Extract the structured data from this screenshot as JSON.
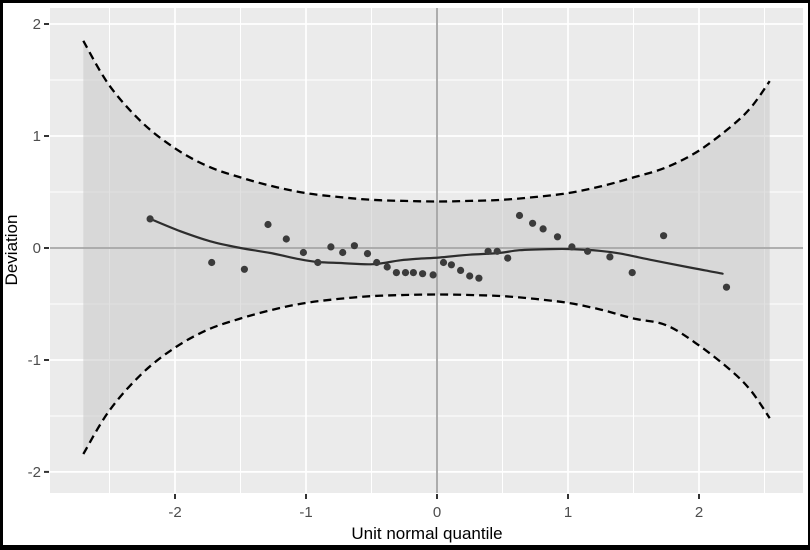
{
  "figure": {
    "background": "#ffffff",
    "border_color": "#000000"
  },
  "chart_data": {
    "type": "scatter",
    "title": "",
    "xlabel": "Unit normal quantile",
    "ylabel": "Deviation",
    "xlim": [
      -2.954,
      2.794
    ],
    "ylim": [
      -2.188,
      2.143
    ],
    "x_ticks": [
      -2,
      -1,
      0,
      1,
      2
    ],
    "y_ticks": [
      2,
      1,
      0,
      -1,
      -2
    ],
    "x_minor_ticks": [
      -2.5,
      -1.5,
      -0.5,
      0.5,
      1.5,
      2.5
    ],
    "y_minor_ticks": [
      1.5,
      0.5,
      -0.5,
      -1.5
    ],
    "grid": true,
    "legend_position": "none",
    "reference_lines": {
      "vertical_x": 0,
      "horizontal_y": 0
    },
    "points": [
      [
        -2.19,
        0.26
      ],
      [
        -1.72,
        -0.13
      ],
      [
        -1.47,
        -0.19
      ],
      [
        -1.29,
        0.21
      ],
      [
        -1.15,
        0.08
      ],
      [
        -1.02,
        -0.04
      ],
      [
        -0.91,
        -0.13
      ],
      [
        -0.81,
        0.01
      ],
      [
        -0.72,
        -0.04
      ],
      [
        -0.63,
        0.02
      ],
      [
        -0.53,
        -0.05
      ],
      [
        -0.46,
        -0.13
      ],
      [
        -0.38,
        -0.17
      ],
      [
        -0.31,
        -0.22
      ],
      [
        -0.24,
        -0.22
      ],
      [
        -0.18,
        -0.22
      ],
      [
        -0.11,
        -0.23
      ],
      [
        -0.03,
        -0.24
      ],
      [
        0.05,
        -0.13
      ],
      [
        0.11,
        -0.15
      ],
      [
        0.18,
        -0.2
      ],
      [
        0.25,
        -0.25
      ],
      [
        0.32,
        -0.27
      ],
      [
        0.39,
        -0.03
      ],
      [
        0.46,
        -0.03
      ],
      [
        0.54,
        -0.09
      ],
      [
        0.63,
        0.29
      ],
      [
        0.73,
        0.22
      ],
      [
        0.81,
        0.17
      ],
      [
        0.92,
        0.1
      ],
      [
        1.03,
        0.01
      ],
      [
        1.15,
        -0.03
      ],
      [
        1.32,
        -0.08
      ],
      [
        1.49,
        -0.22
      ],
      [
        1.73,
        0.11
      ],
      [
        2.21,
        -0.35
      ]
    ],
    "smooth_line": [
      [
        -2.19,
        0.26
      ],
      [
        -1.96,
        0.15
      ],
      [
        -1.73,
        0.06
      ],
      [
        -1.5,
        0.0
      ],
      [
        -1.27,
        -0.045
      ],
      [
        -1.05,
        -0.1
      ],
      [
        -0.91,
        -0.125
      ],
      [
        -0.72,
        -0.135
      ],
      [
        -0.49,
        -0.145
      ],
      [
        -0.28,
        -0.11
      ],
      [
        -0.13,
        -0.095
      ],
      [
        0.02,
        -0.085
      ],
      [
        0.25,
        -0.06
      ],
      [
        0.47,
        -0.045
      ],
      [
        0.63,
        -0.02
      ],
      [
        0.86,
        -0.01
      ],
      [
        1.03,
        -0.01
      ],
      [
        1.24,
        -0.025
      ],
      [
        1.4,
        -0.05
      ],
      [
        1.65,
        -0.11
      ],
      [
        1.91,
        -0.17
      ],
      [
        2.05,
        -0.2
      ],
      [
        2.18,
        -0.23
      ]
    ],
    "band_upper": [
      [
        -2.7,
        1.85
      ],
      [
        -2.5,
        1.45
      ],
      [
        -2.25,
        1.12
      ],
      [
        -2.0,
        0.89
      ],
      [
        -1.75,
        0.73
      ],
      [
        -1.5,
        0.63
      ],
      [
        -1.25,
        0.55
      ],
      [
        -1.0,
        0.49
      ],
      [
        -0.75,
        0.455
      ],
      [
        -0.5,
        0.43
      ],
      [
        -0.25,
        0.42
      ],
      [
        0.0,
        0.415
      ],
      [
        0.25,
        0.42
      ],
      [
        0.5,
        0.43
      ],
      [
        0.75,
        0.455
      ],
      [
        1.0,
        0.49
      ],
      [
        1.25,
        0.55
      ],
      [
        1.5,
        0.63
      ],
      [
        1.75,
        0.72
      ],
      [
        2.0,
        0.87
      ],
      [
        2.25,
        1.09
      ],
      [
        2.4,
        1.26
      ],
      [
        2.54,
        1.49
      ]
    ],
    "band_lower": [
      [
        -2.7,
        -1.84
      ],
      [
        -2.5,
        -1.45
      ],
      [
        -2.25,
        -1.12
      ],
      [
        -2.0,
        -0.89
      ],
      [
        -1.75,
        -0.73
      ],
      [
        -1.5,
        -0.63
      ],
      [
        -1.25,
        -0.55
      ],
      [
        -1.0,
        -0.49
      ],
      [
        -0.75,
        -0.455
      ],
      [
        -0.5,
        -0.43
      ],
      [
        -0.25,
        -0.42
      ],
      [
        0.0,
        -0.415
      ],
      [
        0.25,
        -0.42
      ],
      [
        0.5,
        -0.43
      ],
      [
        0.75,
        -0.455
      ],
      [
        1.0,
        -0.49
      ],
      [
        1.25,
        -0.55
      ],
      [
        1.5,
        -0.63
      ],
      [
        1.75,
        -0.69
      ],
      [
        2.0,
        -0.87
      ],
      [
        2.25,
        -1.1
      ],
      [
        2.4,
        -1.28
      ],
      [
        2.54,
        -1.52
      ]
    ],
    "colors": {
      "panel_background": "#ebebeb",
      "gridline": "#ffffff",
      "band_fill": "#c9c9c9",
      "band_outline": "#000000",
      "reference_line": "#a4a4a4",
      "smooth_line": "#2d2d2d",
      "point": "#3b3b3b",
      "tick_mark": "#333333",
      "tick_label": "#4d4d4d",
      "axis_title": "#000000"
    }
  }
}
